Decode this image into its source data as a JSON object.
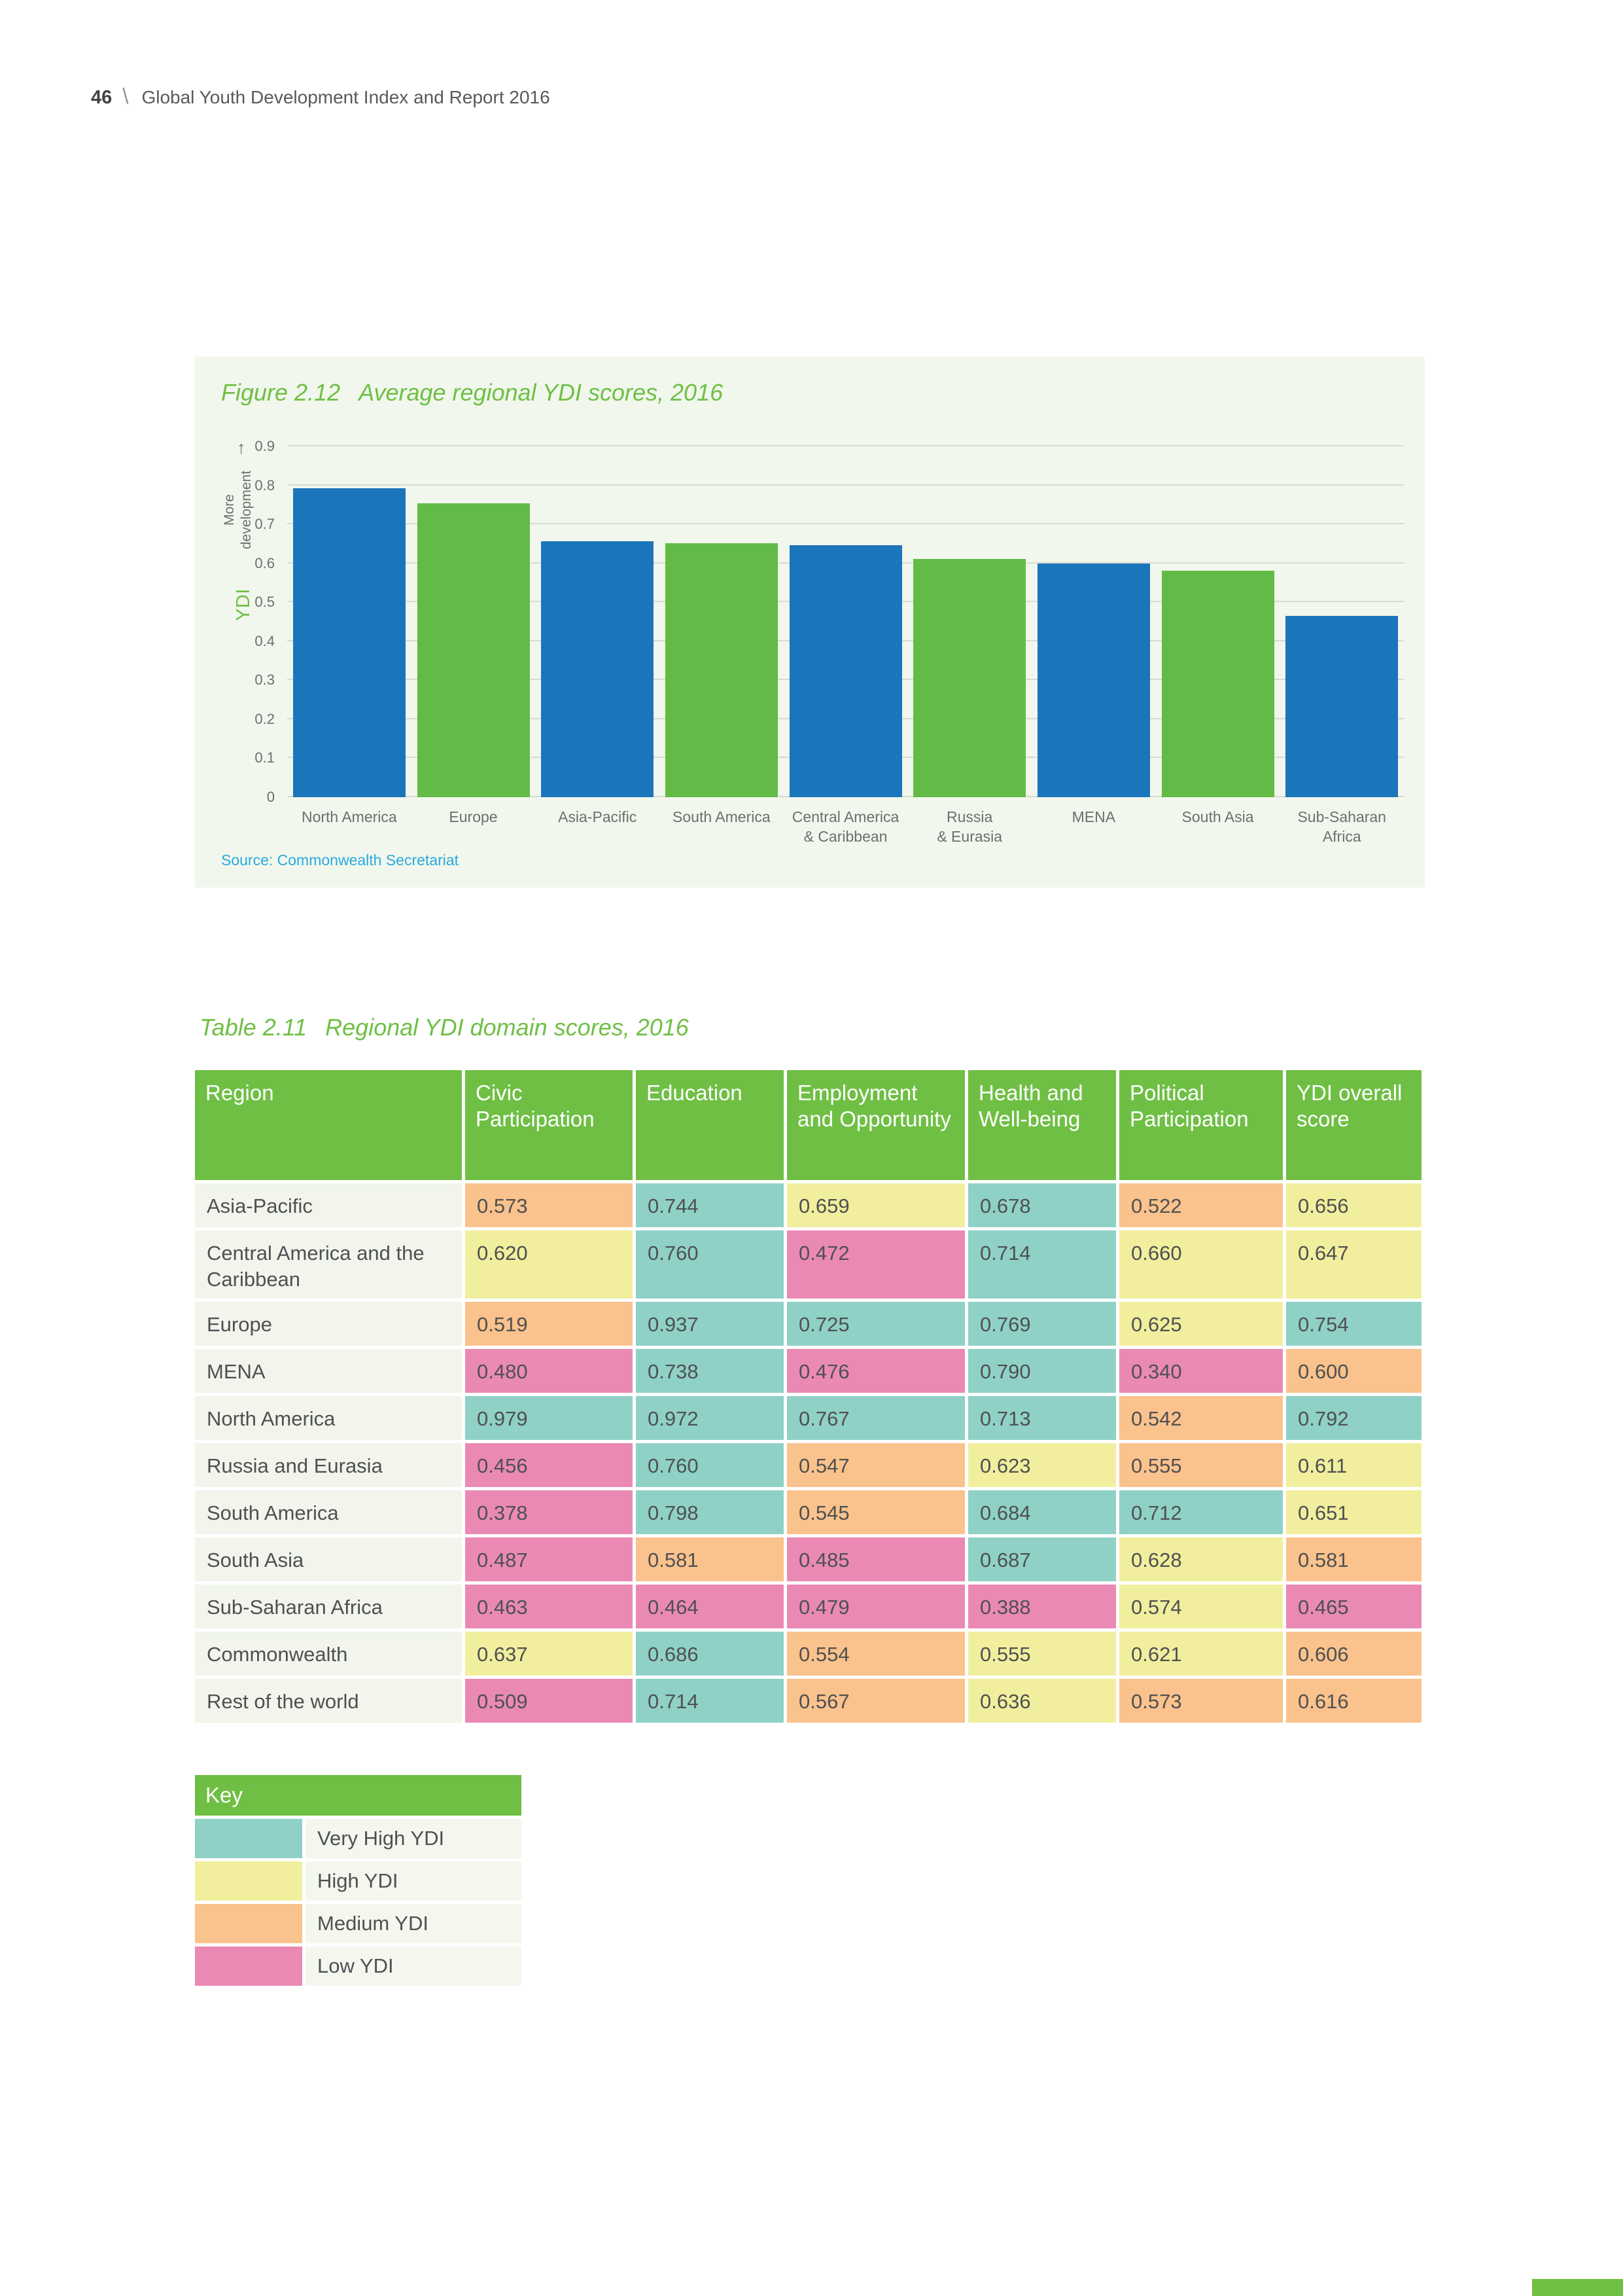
{
  "page": {
    "number": "46",
    "separator": "\\",
    "header_title": "Global Youth Development Index and Report 2016"
  },
  "figure": {
    "label": "Figure 2.12",
    "title": "Average regional YDI scores, 2016",
    "y_axis_title": "YDI",
    "y_axis_annotation": "More development",
    "arrow": "↑",
    "source": "Source: Commonwealth Secretariat"
  },
  "chart_data": {
    "type": "bar",
    "title": "Average regional YDI scores, 2016",
    "categories": [
      "North America",
      "Europe",
      "Asia-Pacific",
      "South America",
      "Central America\n& Caribbean",
      "Russia\n& Eurasia",
      "MENA",
      "South Asia",
      "Sub-Saharan\nAfrica"
    ],
    "values": [
      0.792,
      0.754,
      0.656,
      0.651,
      0.647,
      0.611,
      0.6,
      0.581,
      0.465
    ],
    "bar_colors": [
      "#1b75bb",
      "#62bb46",
      "#1b75bb",
      "#62bb46",
      "#1b75bb",
      "#62bb46",
      "#1b75bb",
      "#62bb46",
      "#1b75bb"
    ],
    "ylabel": "YDI",
    "xlabel": "",
    "ylim": [
      0,
      0.9
    ],
    "yticks": [
      {
        "value": 0,
        "label": "0"
      },
      {
        "value": 0.1,
        "label": "0.1"
      },
      {
        "value": 0.2,
        "label": "0.2"
      },
      {
        "value": 0.3,
        "label": "0.3"
      },
      {
        "value": 0.4,
        "label": "0.4"
      },
      {
        "value": 0.5,
        "label": "0.5"
      },
      {
        "value": 0.6,
        "label": "0.6"
      },
      {
        "value": 0.7,
        "label": "0.7"
      },
      {
        "value": 0.8,
        "label": "0.8"
      },
      {
        "value": 0.9,
        "label": "0.9"
      }
    ],
    "grid": true,
    "legend": false
  },
  "table": {
    "label": "Table 2.11",
    "title": "Regional YDI domain scores, 2016",
    "columns": [
      "Region",
      "Civic Participation",
      "Education",
      "Employment and Opportunity",
      "Health and Well-being",
      "Political Participation",
      "YDI overall score"
    ],
    "rows": [
      {
        "region": "Asia-Pacific",
        "cells": [
          {
            "value": "0.573",
            "level": "medium"
          },
          {
            "value": "0.744",
            "level": "very_high"
          },
          {
            "value": "0.659",
            "level": "high"
          },
          {
            "value": "0.678",
            "level": "very_high"
          },
          {
            "value": "0.522",
            "level": "medium"
          },
          {
            "value": "0.656",
            "level": "high"
          }
        ]
      },
      {
        "region": "Central America and the Caribbean",
        "cells": [
          {
            "value": "0.620",
            "level": "high"
          },
          {
            "value": "0.760",
            "level": "very_high"
          },
          {
            "value": "0.472",
            "level": "low"
          },
          {
            "value": "0.714",
            "level": "very_high"
          },
          {
            "value": "0.660",
            "level": "high"
          },
          {
            "value": "0.647",
            "level": "high"
          }
        ]
      },
      {
        "region": "Europe",
        "cells": [
          {
            "value": "0.519",
            "level": "medium"
          },
          {
            "value": "0.937",
            "level": "very_high"
          },
          {
            "value": "0.725",
            "level": "very_high"
          },
          {
            "value": "0.769",
            "level": "very_high"
          },
          {
            "value": "0.625",
            "level": "high"
          },
          {
            "value": "0.754",
            "level": "very_high"
          }
        ]
      },
      {
        "region": "MENA",
        "cells": [
          {
            "value": "0.480",
            "level": "low"
          },
          {
            "value": "0.738",
            "level": "very_high"
          },
          {
            "value": "0.476",
            "level": "low"
          },
          {
            "value": "0.790",
            "level": "very_high"
          },
          {
            "value": "0.340",
            "level": "low"
          },
          {
            "value": "0.600",
            "level": "medium"
          }
        ]
      },
      {
        "region": "North America",
        "cells": [
          {
            "value": "0.979",
            "level": "very_high"
          },
          {
            "value": "0.972",
            "level": "very_high"
          },
          {
            "value": "0.767",
            "level": "very_high"
          },
          {
            "value": "0.713",
            "level": "very_high"
          },
          {
            "value": "0.542",
            "level": "medium"
          },
          {
            "value": "0.792",
            "level": "very_high"
          }
        ]
      },
      {
        "region": "Russia and Eurasia",
        "cells": [
          {
            "value": "0.456",
            "level": "low"
          },
          {
            "value": "0.760",
            "level": "very_high"
          },
          {
            "value": "0.547",
            "level": "medium"
          },
          {
            "value": "0.623",
            "level": "high"
          },
          {
            "value": "0.555",
            "level": "medium"
          },
          {
            "value": "0.611",
            "level": "high"
          }
        ]
      },
      {
        "region": "South America",
        "cells": [
          {
            "value": "0.378",
            "level": "low"
          },
          {
            "value": "0.798",
            "level": "very_high"
          },
          {
            "value": "0.545",
            "level": "medium"
          },
          {
            "value": "0.684",
            "level": "very_high"
          },
          {
            "value": "0.712",
            "level": "very_high"
          },
          {
            "value": "0.651",
            "level": "high"
          }
        ]
      },
      {
        "region": "South Asia",
        "cells": [
          {
            "value": "0.487",
            "level": "low"
          },
          {
            "value": "0.581",
            "level": "medium"
          },
          {
            "value": "0.485",
            "level": "low"
          },
          {
            "value": "0.687",
            "level": "very_high"
          },
          {
            "value": "0.628",
            "level": "high"
          },
          {
            "value": "0.581",
            "level": "medium"
          }
        ]
      },
      {
        "region": "Sub-Saharan Africa",
        "cells": [
          {
            "value": "0.463",
            "level": "low"
          },
          {
            "value": "0.464",
            "level": "low"
          },
          {
            "value": "0.479",
            "level": "low"
          },
          {
            "value": "0.388",
            "level": "low"
          },
          {
            "value": "0.574",
            "level": "high"
          },
          {
            "value": "0.465",
            "level": "low"
          }
        ]
      },
      {
        "region": "Commonwealth",
        "cells": [
          {
            "value": "0.637",
            "level": "high"
          },
          {
            "value": "0.686",
            "level": "very_high"
          },
          {
            "value": "0.554",
            "level": "medium"
          },
          {
            "value": "0.555",
            "level": "high"
          },
          {
            "value": "0.621",
            "level": "high"
          },
          {
            "value": "0.606",
            "level": "medium"
          }
        ]
      },
      {
        "region": "Rest of the world",
        "cells": [
          {
            "value": "0.509",
            "level": "low"
          },
          {
            "value": "0.714",
            "level": "very_high"
          },
          {
            "value": "0.567",
            "level": "medium"
          },
          {
            "value": "0.636",
            "level": "high"
          },
          {
            "value": "0.573",
            "level": "medium"
          },
          {
            "value": "0.616",
            "level": "medium"
          }
        ]
      }
    ]
  },
  "key": {
    "title": "Key",
    "items": [
      {
        "label": "Very High YDI",
        "level": "very_high"
      },
      {
        "label": "High YDI",
        "level": "high"
      },
      {
        "label": "Medium YDI",
        "level": "medium"
      },
      {
        "label": "Low YDI",
        "level": "low"
      }
    ]
  },
  "colors": {
    "accent_green": "#6fbf44",
    "bar_blue": "#1b75bb",
    "bar_green": "#62bb46",
    "figure_bg": "#f1f7ec",
    "source_blue": "#2aa9e0",
    "region_cell_bg": "#f1f5ec",
    "key_label_bg": "#f3f7ee",
    "levels": {
      "very_high": "#8fd1c6",
      "high": "#f1ef9e",
      "medium": "#fac28c",
      "low": "#ea8ab4"
    }
  }
}
